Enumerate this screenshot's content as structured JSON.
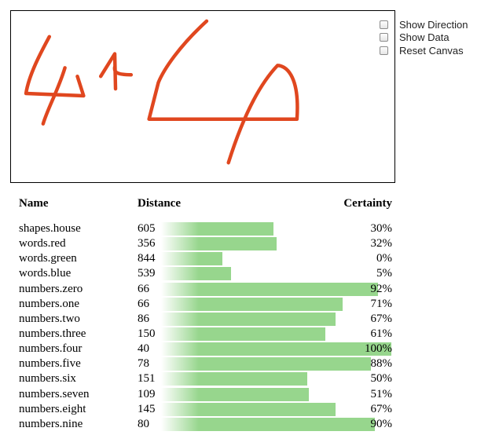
{
  "controls": [
    {
      "label": "Show Direction",
      "checked": false
    },
    {
      "label": "Show Data",
      "checked": false
    },
    {
      "label": "Reset Canvas",
      "checked": false
    }
  ],
  "table": {
    "headers": {
      "name": "Name",
      "distance": "Distance",
      "certainty": "Certainty"
    },
    "rows": [
      {
        "name": "shapes.house",
        "distance": "605",
        "certainty": "30%",
        "certainty_value": 30
      },
      {
        "name": "words.red",
        "distance": "356",
        "certainty": "32%",
        "certainty_value": 32
      },
      {
        "name": "words.green",
        "distance": "844",
        "certainty": "0%",
        "certainty_value": 0
      },
      {
        "name": "words.blue",
        "distance": "539",
        "certainty": "5%",
        "certainty_value": 5
      },
      {
        "name": "numbers.zero",
        "distance": "66",
        "certainty": "92%",
        "certainty_value": 92
      },
      {
        "name": "numbers.one",
        "distance": "66",
        "certainty": "71%",
        "certainty_value": 71
      },
      {
        "name": "numbers.two",
        "distance": "86",
        "certainty": "67%",
        "certainty_value": 67
      },
      {
        "name": "numbers.three",
        "distance": "150",
        "certainty": "61%",
        "certainty_value": 61
      },
      {
        "name": "numbers.four",
        "distance": "40",
        "certainty": "100%",
        "certainty_value": 100
      },
      {
        "name": "numbers.five",
        "distance": "78",
        "certainty": "88%",
        "certainty_value": 88
      },
      {
        "name": "numbers.six",
        "distance": "151",
        "certainty": "50%",
        "certainty_value": 50
      },
      {
        "name": "numbers.seven",
        "distance": "109",
        "certainty": "51%",
        "certainty_value": 51
      },
      {
        "name": "numbers.eight",
        "distance": "145",
        "certainty": "67%",
        "certainty_value": 67
      },
      {
        "name": "numbers.nine",
        "distance": "80",
        "certainty": "90%",
        "certainty_value": 90
      }
    ]
  },
  "colors": {
    "stroke": "#e0471f",
    "bar": "#97d68d"
  }
}
